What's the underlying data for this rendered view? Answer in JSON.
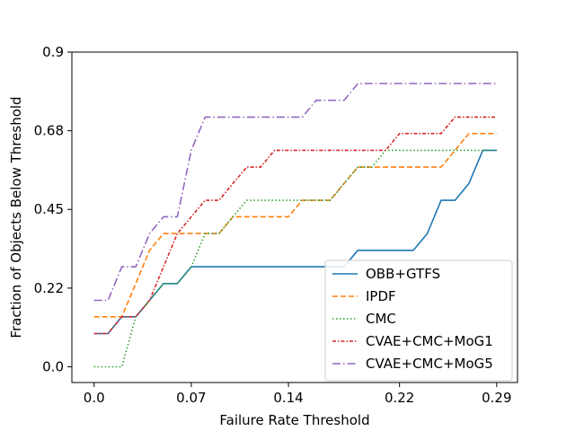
{
  "chart_data": {
    "type": "line",
    "title": "",
    "xlabel": "Failure Rate Threshold",
    "ylabel": "Fraction of Objects Below Threshold",
    "xlim": [
      -0.016,
      0.305
    ],
    "ylim": [
      -0.045,
      0.9
    ],
    "xticks": [
      0.0,
      0.07,
      0.14,
      0.22,
      0.29
    ],
    "xtick_labels": [
      "0.0",
      "0.07",
      "0.14",
      "0.22",
      "0.29"
    ],
    "yticks": [
      0.0,
      0.225,
      0.45,
      0.675,
      0.9
    ],
    "ytick_labels": [
      "0.0",
      "0.22",
      "0.45",
      "0.68",
      "0.9"
    ],
    "grid": false,
    "legend_position": "lower-right",
    "series": [
      {
        "name": "OBB+GTFS",
        "color": "#1f77b4",
        "dash": "solid",
        "x": [
          0.0,
          0.01,
          0.02,
          0.03,
          0.04,
          0.05,
          0.06,
          0.07,
          0.08,
          0.09,
          0.1,
          0.11,
          0.12,
          0.13,
          0.14,
          0.15,
          0.16,
          0.17,
          0.18,
          0.19,
          0.2,
          0.21,
          0.22,
          0.23,
          0.24,
          0.25,
          0.26,
          0.27,
          0.28,
          0.29
        ],
        "y": [
          0.095,
          0.095,
          0.143,
          0.143,
          0.19,
          0.238,
          0.238,
          0.286,
          0.286,
          0.286,
          0.286,
          0.286,
          0.286,
          0.286,
          0.286,
          0.286,
          0.286,
          0.286,
          0.286,
          0.333,
          0.333,
          0.333,
          0.333,
          0.333,
          0.381,
          0.476,
          0.476,
          0.524,
          0.619,
          0.619
        ]
      },
      {
        "name": "IPDF",
        "color": "#ff7f0e",
        "dash": "dashed",
        "x": [
          0.0,
          0.01,
          0.02,
          0.03,
          0.04,
          0.05,
          0.06,
          0.07,
          0.08,
          0.09,
          0.1,
          0.11,
          0.12,
          0.13,
          0.14,
          0.15,
          0.16,
          0.17,
          0.18,
          0.19,
          0.2,
          0.21,
          0.22,
          0.23,
          0.24,
          0.25,
          0.26,
          0.27,
          0.28,
          0.29
        ],
        "y": [
          0.143,
          0.143,
          0.143,
          0.238,
          0.333,
          0.381,
          0.381,
          0.381,
          0.381,
          0.381,
          0.429,
          0.429,
          0.429,
          0.429,
          0.429,
          0.476,
          0.476,
          0.476,
          0.524,
          0.571,
          0.571,
          0.571,
          0.571,
          0.571,
          0.571,
          0.571,
          0.619,
          0.667,
          0.667,
          0.667
        ]
      },
      {
        "name": "CMC",
        "color": "#2ca02c",
        "dash": "dotted",
        "x": [
          0.0,
          0.01,
          0.02,
          0.03,
          0.04,
          0.05,
          0.06,
          0.07,
          0.08,
          0.09,
          0.1,
          0.11,
          0.12,
          0.13,
          0.14,
          0.15,
          0.16,
          0.17,
          0.18,
          0.19,
          0.2,
          0.21,
          0.22,
          0.23,
          0.24,
          0.25,
          0.26,
          0.27,
          0.28,
          0.29
        ],
        "y": [
          0.0,
          0.0,
          0.0,
          0.143,
          0.19,
          0.238,
          0.238,
          0.286,
          0.381,
          0.381,
          0.429,
          0.476,
          0.476,
          0.476,
          0.476,
          0.476,
          0.476,
          0.476,
          0.524,
          0.571,
          0.571,
          0.619,
          0.619,
          0.619,
          0.619,
          0.619,
          0.619,
          0.619,
          0.619,
          0.619
        ]
      },
      {
        "name": "CVAE+CMC+MoG1",
        "color": "#d62728",
        "dash": "dashdot-dense",
        "x": [
          0.0,
          0.01,
          0.02,
          0.03,
          0.04,
          0.05,
          0.06,
          0.07,
          0.08,
          0.09,
          0.1,
          0.11,
          0.12,
          0.13,
          0.14,
          0.15,
          0.16,
          0.17,
          0.18,
          0.19,
          0.2,
          0.21,
          0.22,
          0.23,
          0.24,
          0.25,
          0.26,
          0.27,
          0.28,
          0.29
        ],
        "y": [
          0.095,
          0.095,
          0.143,
          0.143,
          0.19,
          0.286,
          0.381,
          0.429,
          0.476,
          0.476,
          0.524,
          0.571,
          0.571,
          0.619,
          0.619,
          0.619,
          0.619,
          0.619,
          0.619,
          0.619,
          0.619,
          0.619,
          0.667,
          0.667,
          0.667,
          0.667,
          0.714,
          0.714,
          0.714,
          0.714
        ]
      },
      {
        "name": "CVAE+CMC+MoG5",
        "color": "#9467bd",
        "dash": "dashdot",
        "x": [
          0.0,
          0.01,
          0.02,
          0.03,
          0.04,
          0.05,
          0.06,
          0.07,
          0.08,
          0.09,
          0.1,
          0.11,
          0.12,
          0.13,
          0.14,
          0.15,
          0.16,
          0.17,
          0.18,
          0.19,
          0.2,
          0.21,
          0.22,
          0.23,
          0.24,
          0.25,
          0.26,
          0.27,
          0.28,
          0.29
        ],
        "y": [
          0.19,
          0.19,
          0.286,
          0.286,
          0.381,
          0.429,
          0.429,
          0.619,
          0.714,
          0.714,
          0.714,
          0.714,
          0.714,
          0.714,
          0.714,
          0.714,
          0.762,
          0.762,
          0.762,
          0.81,
          0.81,
          0.81,
          0.81,
          0.81,
          0.81,
          0.81,
          0.81,
          0.81,
          0.81,
          0.81
        ]
      }
    ]
  }
}
